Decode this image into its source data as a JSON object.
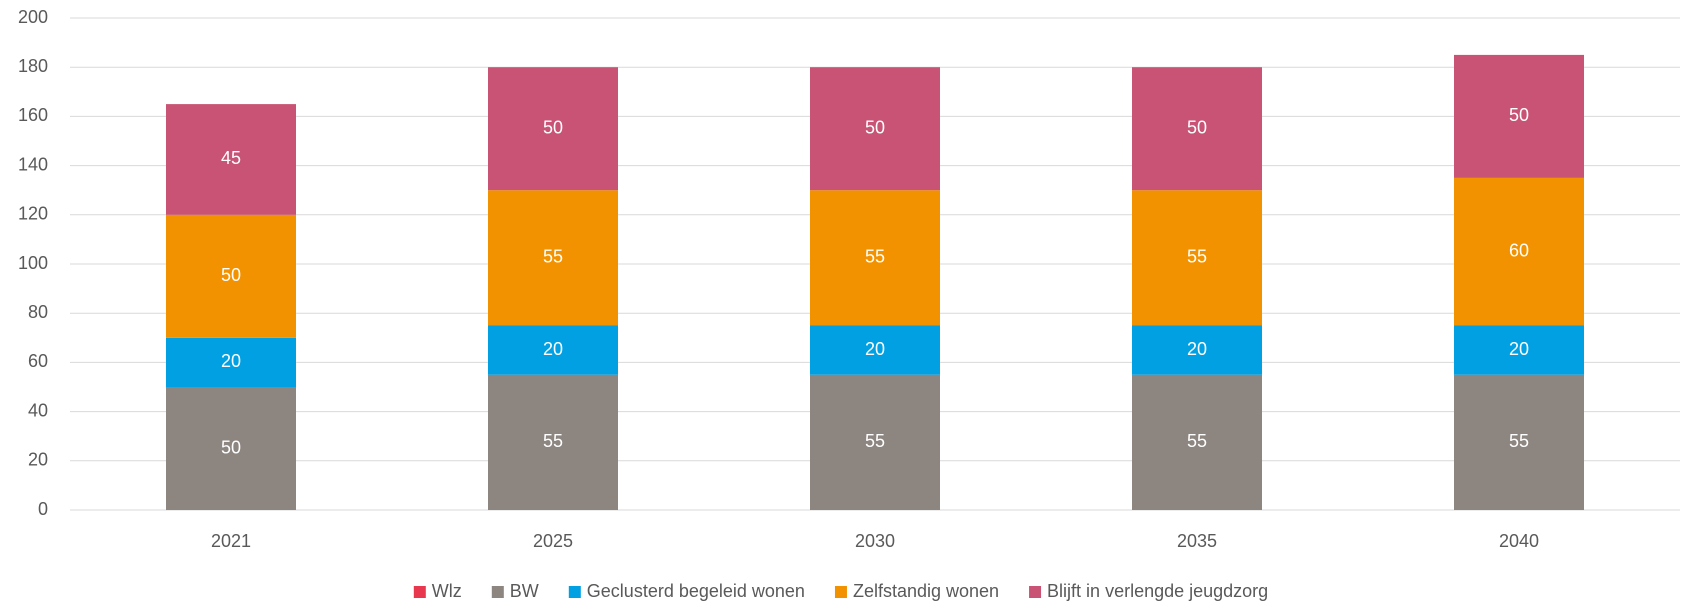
{
  "chart_data": {
    "type": "stacked_bar",
    "categories": [
      "2021",
      "2025",
      "2030",
      "2035",
      "2040"
    ],
    "series": [
      {
        "name": "Wlz",
        "color": "#e8384f",
        "values": [
          0,
          0,
          0,
          0,
          0
        ]
      },
      {
        "name": "BW",
        "color": "#8c8580",
        "values": [
          50,
          55,
          55,
          55,
          55
        ]
      },
      {
        "name": "Geclusterd begeleid wonen",
        "color": "#00a0e3",
        "values": [
          20,
          20,
          20,
          20,
          20
        ]
      },
      {
        "name": "Zelfstandig wonen",
        "color": "#f39200",
        "values": [
          50,
          55,
          55,
          55,
          60
        ]
      },
      {
        "name": "Blijft in verlengde jeugdzorg",
        "color": "#c85374",
        "values": [
          45,
          50,
          50,
          50,
          50
        ]
      }
    ],
    "ylim": [
      0,
      200
    ],
    "yticks": [
      0,
      20,
      40,
      60,
      80,
      100,
      120,
      140,
      160,
      180,
      200
    ],
    "grid": true,
    "legend": "bottom"
  }
}
